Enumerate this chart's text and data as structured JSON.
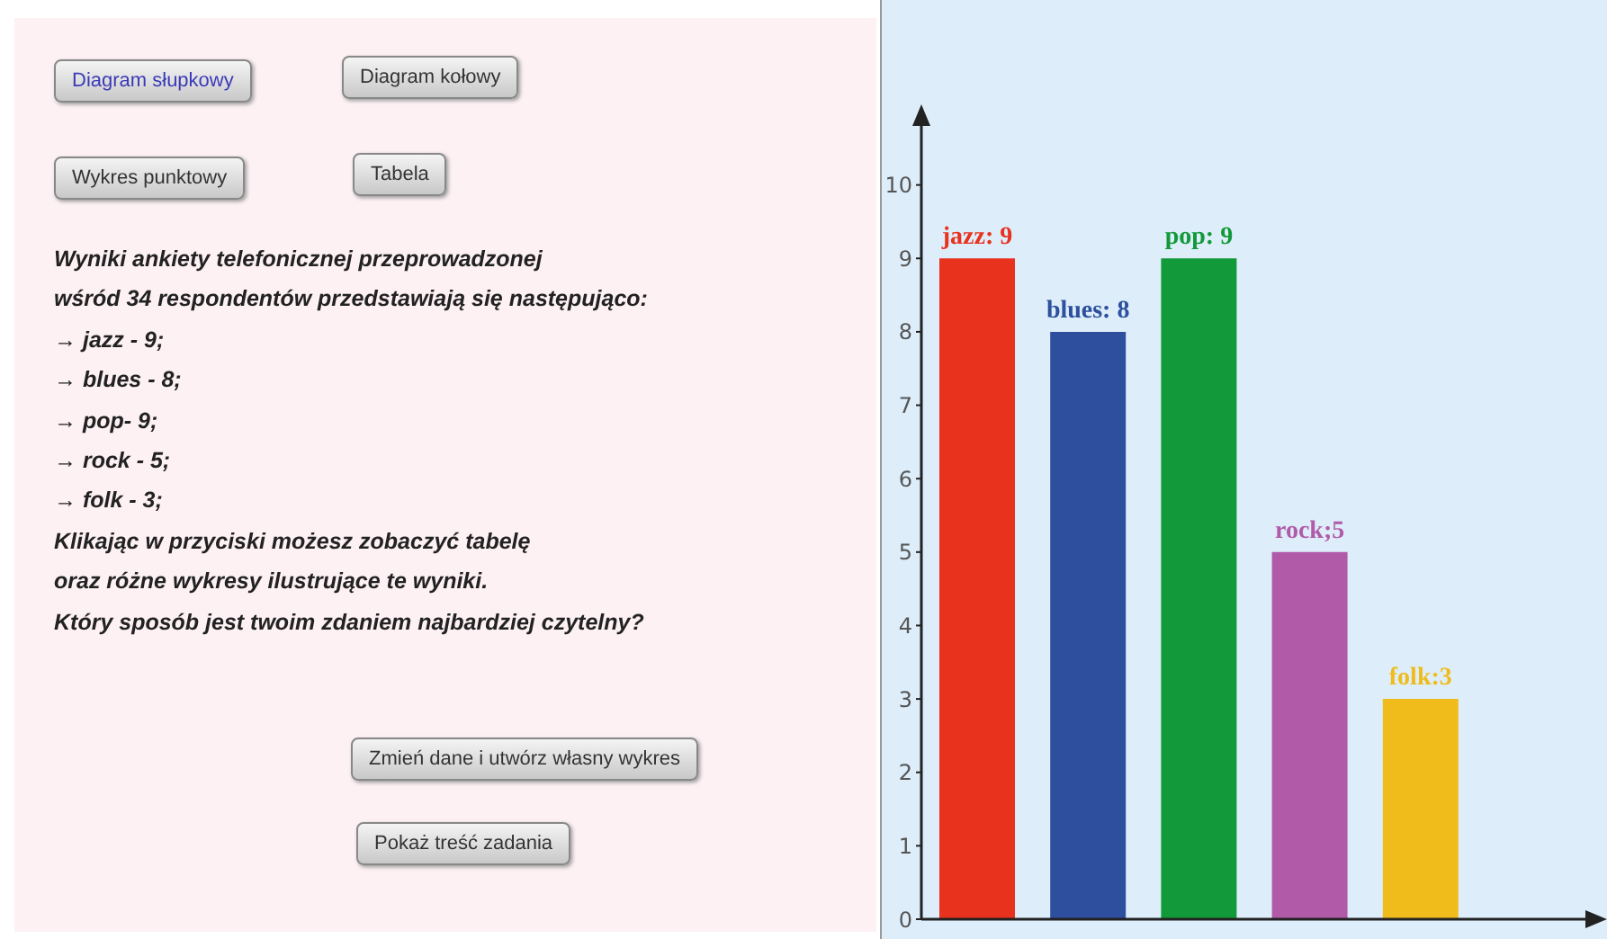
{
  "chart_data": {
    "type": "bar",
    "categories": [
      null,
      null,
      null,
      null,
      null
    ],
    "values": [
      9,
      8,
      9,
      5,
      3
    ],
    "colors": [
      "#e8321e",
      "#2d4f9e",
      "#12993a",
      "#b05aa8",
      "#f0bc1c"
    ],
    "value_labels": [
      "jazz: 9",
      "blues: 8",
      "pop: 9",
      "rock;5",
      "folk:3"
    ],
    "ylim": [
      0,
      11
    ],
    "yticks": [
      0,
      1,
      2,
      3,
      4,
      5,
      6,
      7,
      8,
      9,
      10
    ],
    "grid": false,
    "legend": false,
    "annotations": [
      "Diagram słupkowy",
      "Diagram kołowy",
      "Wykres punktowy",
      "Tabela",
      "Wyniki ankiety telefonicznej przeprowadzonej\nwśród 34 respondentów przedstawiają się następująco:\n→ jazz - 9;\n→ blues - 8;\n→ pop- 9;\n→ rock - 5;\n→ folk - 3;\nKlikając w przyciski możesz zobaczyć tabelę\noraz różne wykresy ilustrujące te wyniki.\nKtóry sposób jest twoim zdaniem najbardziej czytelny?",
      "Zmień dane i utwórz własny wykres",
      "Pokaż treść zadania"
    ]
  }
}
